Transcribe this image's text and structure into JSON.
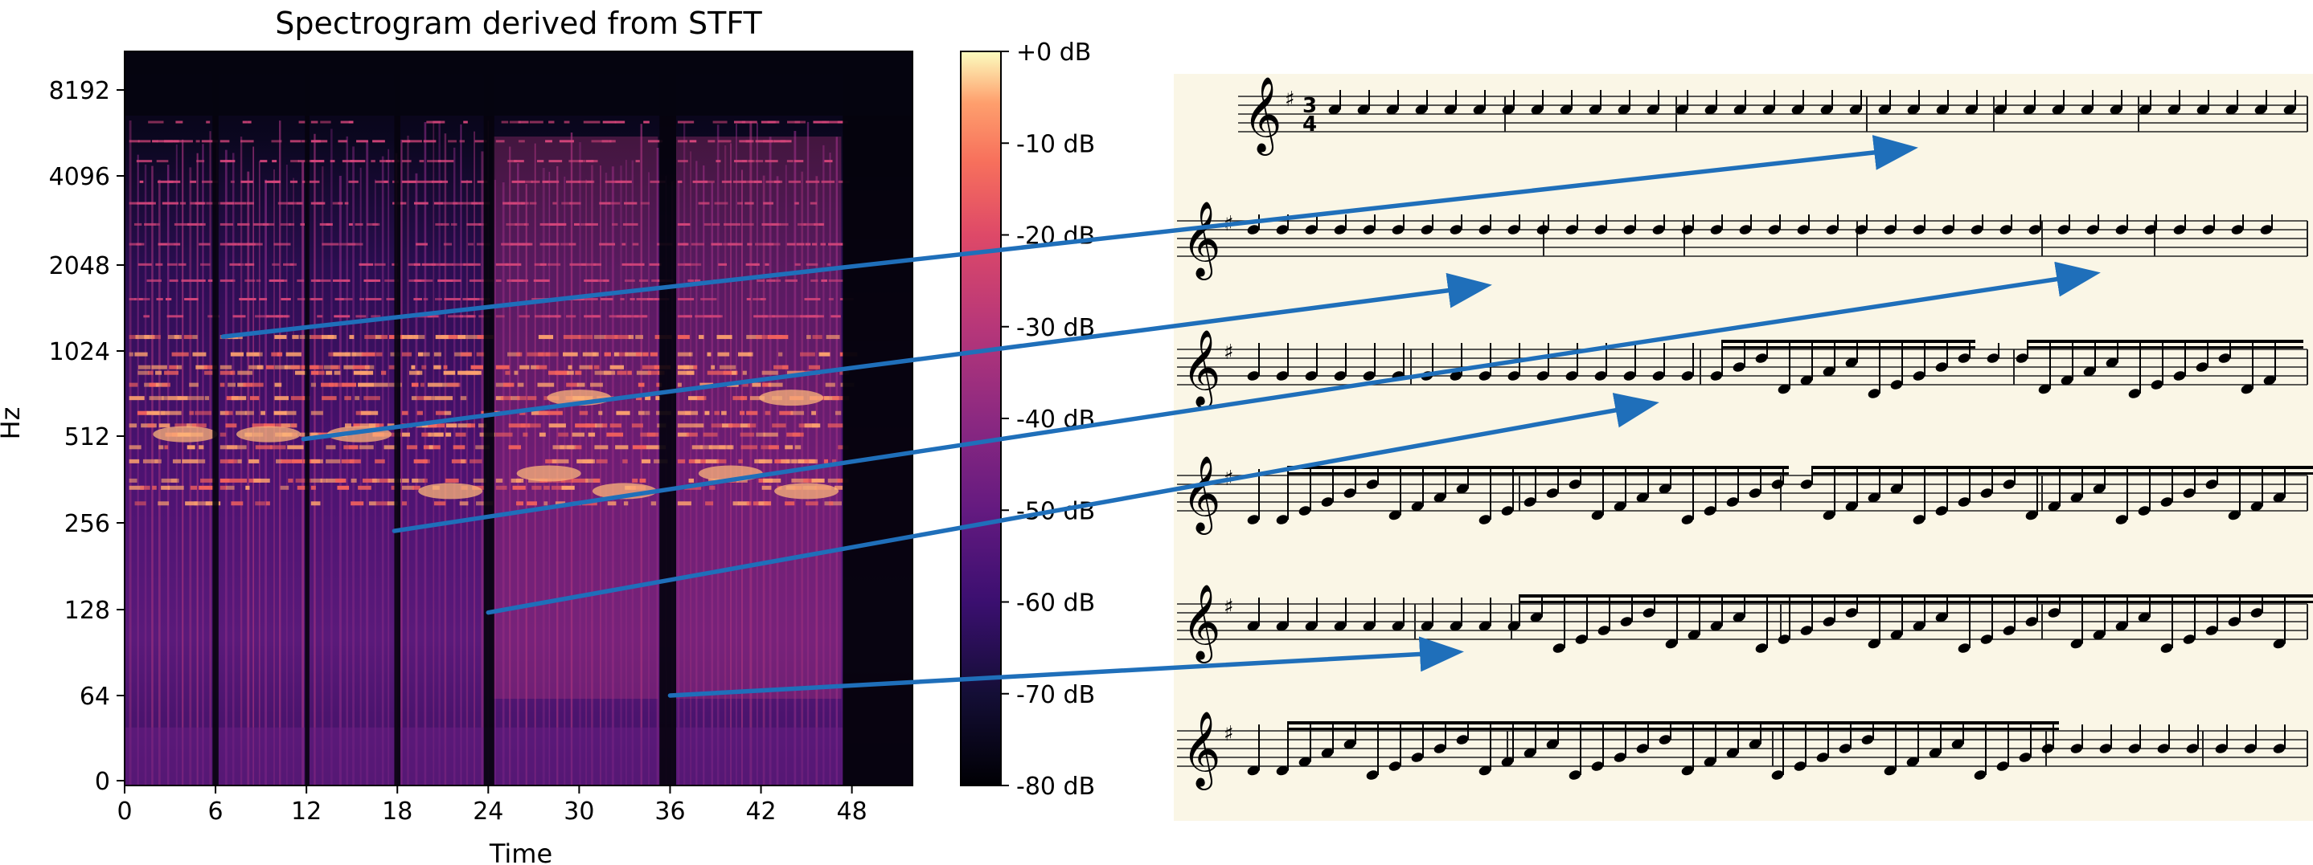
{
  "chart_data": {
    "type": "heatmap",
    "title": "Spectrogram derived from STFT",
    "xlabel": "Time",
    "ylabel": "Hz",
    "x_range": [
      0,
      52
    ],
    "x_ticks": [
      "0",
      "6",
      "12",
      "18",
      "24",
      "30",
      "36",
      "42",
      "48"
    ],
    "y_scale": "log2",
    "y_ticks": [
      "0",
      "64",
      "128",
      "256",
      "512",
      "1024",
      "2048",
      "4096",
      "8192"
    ],
    "colorbar": {
      "range_db": [
        -80,
        0
      ],
      "ticks": [
        "+0 dB",
        "-10 dB",
        "-20 dB",
        "-30 dB",
        "-40 dB",
        "-50 dB",
        "-60 dB",
        "-70 dB",
        "-80 dB"
      ],
      "colormap": "magma"
    },
    "silent_gaps": [
      {
        "start": 5.8,
        "end": 6.2
      },
      {
        "start": 11.9,
        "end": 12.2
      },
      {
        "start": 17.8,
        "end": 18.2
      },
      {
        "start": 23.7,
        "end": 24.4
      },
      {
        "start": 35.3,
        "end": 36.4
      },
      {
        "start": 47.4,
        "end": 52
      }
    ],
    "alignment_arrows": [
      {
        "time": 6.5,
        "freq_hz": 1150,
        "score_target": "system-1 half note"
      },
      {
        "time": 11.8,
        "freq_hz": 500,
        "score_target": "system-2 half note (first)"
      },
      {
        "time": 17.8,
        "freq_hz": 240,
        "score_target": "system-2 half note (second)"
      },
      {
        "time": 24,
        "freq_hz": 125,
        "score_target": "system-3 half note"
      },
      {
        "time": 36,
        "freq_hz": 64,
        "score_target": "system-5 half note"
      }
    ]
  },
  "score": {
    "time_signature": [
      "3",
      "4"
    ],
    "key_signature": "♯",
    "systems": 6
  },
  "colors": {
    "arrow": "#1f6fba",
    "paper": "#faf6e6",
    "background": "#000000"
  }
}
